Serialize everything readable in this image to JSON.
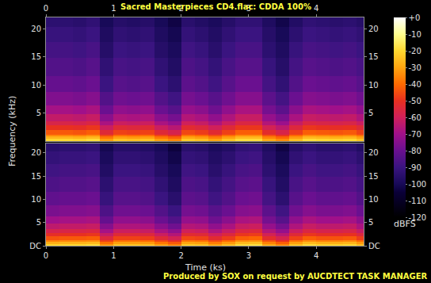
{
  "chart_data": {
    "type": "heatmap",
    "title": "Sacred Masterpieces CD4.flac: CDDA 100%",
    "footer": "Produced by SOX on request by AUCDTECT TASK MANAGER",
    "x_label": "Time (ks)",
    "y_label": "Frequency (kHz)",
    "xlim": [
      0,
      4.7
    ],
    "xticks": [
      0,
      1,
      2,
      3,
      4
    ],
    "ylim": [
      0,
      22.05
    ],
    "yticks": [
      {
        "value": 0,
        "label": "DC"
      },
      5,
      10,
      15,
      20
    ],
    "x_edges": [
      0,
      0.2,
      0.4,
      0.6,
      0.8,
      1.0,
      1.2,
      1.4,
      1.6,
      1.8,
      2.0,
      2.2,
      2.4,
      2.6,
      2.8,
      3.0,
      3.2,
      3.4,
      3.6,
      3.8,
      4.0,
      4.2,
      4.4,
      4.6,
      4.7
    ],
    "y_edges": [
      0,
      0.4,
      0.8,
      1.2,
      2,
      2.8,
      3.6,
      4.8,
      6.4,
      8.8,
      11.6,
      14.8,
      17.6,
      20.4,
      22.05
    ],
    "channels": [
      {
        "cells": [
          [
            -20,
            -20,
            -21,
            -19,
            -31,
            -24,
            -25,
            -24,
            -31,
            -35,
            -23,
            -25,
            -30,
            -24,
            -19,
            -19,
            -29,
            -34,
            -25,
            -19,
            -20,
            -21,
            -20,
            -24
          ],
          [
            -27,
            -27,
            -28,
            -26,
            -38,
            -31,
            -32,
            -31,
            -38,
            -42,
            -30,
            -32,
            -37,
            -31,
            -26,
            -26,
            -36,
            -41,
            -32,
            -26,
            -27,
            -28,
            -27,
            -31
          ],
          [
            -35,
            -35,
            -36,
            -34,
            -46,
            -39,
            -40,
            -39,
            -46,
            -50,
            -38,
            -40,
            -45,
            -39,
            -34,
            -34,
            -44,
            -49,
            -40,
            -34,
            -35,
            -36,
            -35,
            -39
          ],
          [
            -43,
            -43,
            -44,
            -42,
            -54,
            -47,
            -48,
            -47,
            -54,
            -58,
            -46,
            -48,
            -53,
            -47,
            -42,
            -42,
            -52,
            -57,
            -48,
            -42,
            -43,
            -44,
            -43,
            -47
          ],
          [
            -50,
            -50,
            -51,
            -49,
            -61,
            -54,
            -55,
            -54,
            -61,
            -65,
            -53,
            -55,
            -60,
            -54,
            -49,
            -49,
            -59,
            -64,
            -55,
            -49,
            -50,
            -51,
            -50,
            -54
          ],
          [
            -57,
            -57,
            -58,
            -56,
            -68,
            -61,
            -62,
            -61,
            -68,
            -72,
            -60,
            -62,
            -67,
            -61,
            -56,
            -56,
            -66,
            -71,
            -62,
            -56,
            -57,
            -58,
            -57,
            -61
          ],
          [
            -63,
            -63,
            -64,
            -62,
            -74,
            -67,
            -68,
            -67,
            -74,
            -78,
            -66,
            -68,
            -73,
            -67,
            -62,
            -62,
            -72,
            -77,
            -68,
            -62,
            -63,
            -64,
            -63,
            -67
          ],
          [
            -69,
            -69,
            -70,
            -68,
            -80,
            -73,
            -74,
            -73,
            -80,
            -84,
            -72,
            -74,
            -79,
            -73,
            -68,
            -68,
            -78,
            -83,
            -74,
            -68,
            -69,
            -70,
            -69,
            -73
          ],
          [
            -76,
            -76,
            -77,
            -75,
            -85,
            -79,
            -80,
            -79,
            -85,
            -89,
            -78,
            -80,
            -84,
            -79,
            -75,
            -75,
            -83,
            -88,
            -80,
            -75,
            -76,
            -77,
            -76,
            -79
          ],
          [
            -81,
            -81,
            -82,
            -80,
            -90,
            -84,
            -85,
            -84,
            -90,
            -94,
            -83,
            -85,
            -89,
            -84,
            -80,
            -80,
            -88,
            -93,
            -85,
            -80,
            -81,
            -82,
            -81,
            -84
          ],
          [
            -85,
            -85,
            -86,
            -84,
            -93,
            -87,
            -88,
            -87,
            -93,
            -97,
            -86,
            -88,
            -92,
            -87,
            -84,
            -84,
            -91,
            -96,
            -88,
            -84,
            -85,
            -86,
            -85,
            -87
          ],
          [
            -88,
            -88,
            -89,
            -87,
            -96,
            -90,
            -91,
            -90,
            -96,
            -99,
            -89,
            -91,
            -95,
            -90,
            -87,
            -87,
            -94,
            -98,
            -91,
            -87,
            -88,
            -89,
            -88,
            -90
          ],
          [
            -91,
            -91,
            -92,
            -90,
            -98,
            -93,
            -94,
            -93,
            -98,
            -101,
            -92,
            -94,
            -97,
            -93,
            -90,
            -90,
            -96,
            -100,
            -94,
            -90,
            -91,
            -92,
            -91,
            -93
          ],
          [
            -94,
            -94,
            -95,
            -93,
            -100,
            -96,
            -97,
            -96,
            -100,
            -103,
            -95,
            -97,
            -99,
            -96,
            -93,
            -93,
            -98,
            -102,
            -97,
            -93,
            -94,
            -95,
            -94,
            -96
          ]
        ]
      },
      {
        "cells": [
          [
            -21,
            -20,
            -20,
            -19,
            -32,
            -24,
            -24,
            -25,
            -31,
            -36,
            -23,
            -24,
            -30,
            -25,
            -19,
            -18,
            -29,
            -35,
            -24,
            -19,
            -21,
            -21,
            -20,
            -25
          ],
          [
            -28,
            -27,
            -27,
            -26,
            -39,
            -31,
            -31,
            -32,
            -38,
            -43,
            -30,
            -31,
            -37,
            -32,
            -26,
            -25,
            -36,
            -42,
            -31,
            -26,
            -28,
            -28,
            -27,
            -32
          ],
          [
            -36,
            -35,
            -35,
            -34,
            -47,
            -39,
            -39,
            -40,
            -46,
            -51,
            -38,
            -39,
            -45,
            -40,
            -34,
            -33,
            -44,
            -50,
            -39,
            -34,
            -36,
            -36,
            -35,
            -40
          ],
          [
            -44,
            -43,
            -43,
            -42,
            -55,
            -47,
            -47,
            -48,
            -54,
            -59,
            -46,
            -47,
            -53,
            -48,
            -42,
            -41,
            -52,
            -58,
            -47,
            -42,
            -44,
            -44,
            -43,
            -48
          ],
          [
            -51,
            -50,
            -50,
            -49,
            -62,
            -54,
            -54,
            -55,
            -61,
            -66,
            -53,
            -54,
            -60,
            -55,
            -49,
            -48,
            -59,
            -65,
            -54,
            -49,
            -51,
            -51,
            -50,
            -55
          ],
          [
            -58,
            -57,
            -57,
            -56,
            -69,
            -61,
            -61,
            -62,
            -68,
            -73,
            -60,
            -61,
            -67,
            -62,
            -56,
            -55,
            -66,
            -72,
            -61,
            -56,
            -58,
            -58,
            -57,
            -62
          ],
          [
            -64,
            -63,
            -63,
            -62,
            -75,
            -67,
            -67,
            -68,
            -74,
            -79,
            -66,
            -67,
            -73,
            -68,
            -62,
            -61,
            -72,
            -78,
            -67,
            -62,
            -64,
            -64,
            -63,
            -68
          ],
          [
            -70,
            -69,
            -69,
            -68,
            -81,
            -73,
            -73,
            -74,
            -80,
            -85,
            -72,
            -73,
            -79,
            -74,
            -68,
            -67,
            -78,
            -84,
            -73,
            -68,
            -70,
            -70,
            -69,
            -74
          ],
          [
            -77,
            -76,
            -76,
            -75,
            -86,
            -79,
            -79,
            -80,
            -85,
            -90,
            -78,
            -79,
            -84,
            -80,
            -75,
            -74,
            -83,
            -89,
            -79,
            -75,
            -77,
            -77,
            -76,
            -80
          ],
          [
            -82,
            -81,
            -81,
            -80,
            -91,
            -84,
            -84,
            -85,
            -90,
            -95,
            -83,
            -84,
            -89,
            -85,
            -80,
            -79,
            -88,
            -94,
            -84,
            -80,
            -82,
            -82,
            -81,
            -85
          ],
          [
            -86,
            -85,
            -85,
            -84,
            -94,
            -87,
            -87,
            -88,
            -93,
            -98,
            -86,
            -87,
            -92,
            -88,
            -84,
            -83,
            -91,
            -97,
            -87,
            -84,
            -86,
            -86,
            -85,
            -88
          ],
          [
            -89,
            -88,
            -88,
            -87,
            -97,
            -90,
            -90,
            -91,
            -96,
            -100,
            -89,
            -90,
            -95,
            -91,
            -87,
            -86,
            -94,
            -99,
            -90,
            -87,
            -89,
            -89,
            -88,
            -91
          ],
          [
            -92,
            -91,
            -91,
            -90,
            -99,
            -93,
            -93,
            -94,
            -98,
            -102,
            -92,
            -93,
            -97,
            -94,
            -90,
            -89,
            -96,
            -101,
            -93,
            -90,
            -92,
            -92,
            -91,
            -94
          ],
          [
            -95,
            -94,
            -94,
            -93,
            -101,
            -96,
            -96,
            -97,
            -100,
            -104,
            -95,
            -96,
            -99,
            -97,
            -93,
            -92,
            -98,
            -103,
            -96,
            -93,
            -95,
            -95,
            -94,
            -97
          ]
        ]
      }
    ],
    "colorbar": {
      "range": [
        -120,
        0
      ],
      "ticks": [
        {
          "value": 0,
          "label": "+0"
        },
        -10,
        -20,
        -30,
        -40,
        -50,
        -60,
        -70,
        -80,
        -90,
        -100,
        -110,
        -120
      ],
      "title": "dBFS"
    }
  }
}
